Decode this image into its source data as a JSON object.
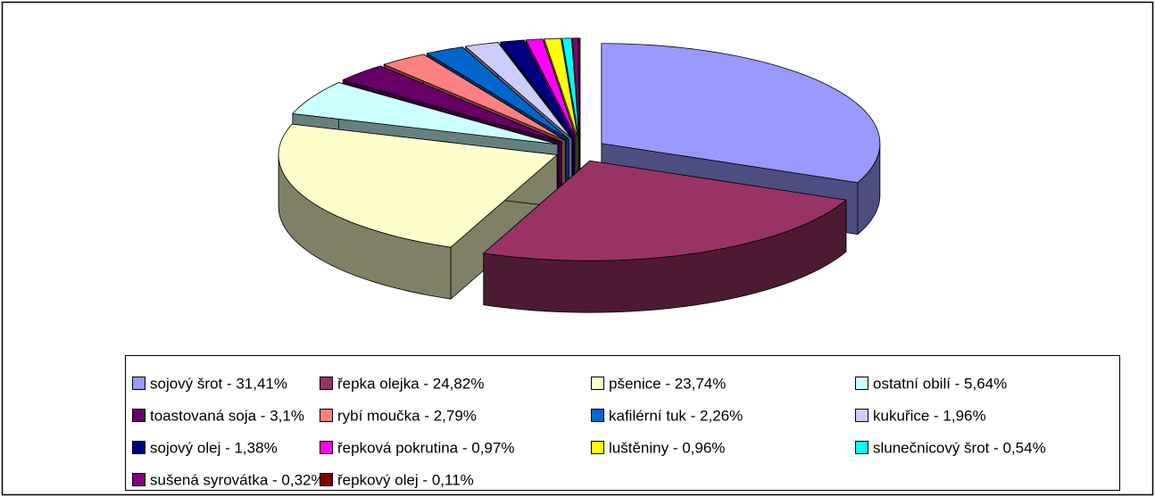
{
  "chart_data": {
    "type": "pie3d",
    "categories": [
      "sojový šrot - 31,41%",
      "řepka olejka - 24,82%",
      "pšenice - 23,74%",
      "ostatní obilí - 5,64%",
      "toastovaná soja - 3,1%",
      "rybí moučka - 2,79%",
      "kafilérní tuk - 2,26%",
      "kukuřice - 1,96%",
      "sojový olej - 1,38%",
      "řepková pokrutina - 0,97%",
      "luštěniny - 0,96%",
      "slunečnicový šrot - 0,54%",
      "sušená syrovátka - 0,32%",
      "řepkový olej - 0,11%"
    ],
    "values": [
      31.41,
      24.82,
      23.74,
      5.64,
      3.1,
      2.79,
      2.26,
      1.96,
      1.38,
      0.97,
      0.96,
      0.54,
      0.32,
      0.11
    ],
    "colors": [
      "#9999ff",
      "#993366",
      "#ffffcc",
      "#ccffff",
      "#660066",
      "#ff8080",
      "#0066cc",
      "#ccccff",
      "#000080",
      "#ff00ff",
      "#ffff00",
      "#00ffff",
      "#800080",
      "#800000"
    ],
    "legend": "bottom"
  }
}
